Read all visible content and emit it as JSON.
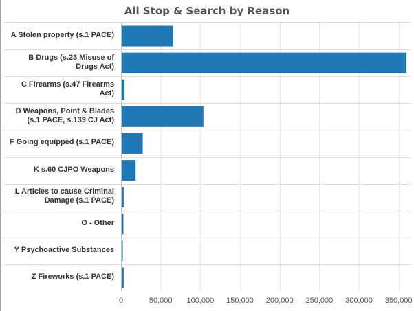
{
  "chart_data": {
    "type": "bar",
    "orientation": "horizontal",
    "title": "All Stop & Search by Reason",
    "categories": [
      "A Stolen property (s.1 PACE)",
      "B Drugs (s.23 Misuse of Drugs Act)",
      "C Firearms (s.47 Firearms Act)",
      "D Weapons, Point & Blades (s.1 PACE, s.139 CJ Act)",
      "F Going equipped (s.1 PACE)",
      "K s.60 CJPO Weapons",
      "L Articles to cause Criminal Damage (s.1 PACE)",
      "O - Other",
      "Y Psychoactive Substances",
      "Z Fireworks (s.1 PACE)"
    ],
    "label_lines": [
      [
        "A Stolen property (s.1 PACE)"
      ],
      [
        "B Drugs (s.23 Misuse of",
        "Drugs Act)"
      ],
      [
        "C Firearms (s.47 Firearms",
        "Act)"
      ],
      [
        "D Weapons, Point & Blades",
        "(s.1 PACE, s.139 CJ Act)"
      ],
      [
        "F Going equipped (s.1 PACE)"
      ],
      [
        "K s.60 CJPO Weapons"
      ],
      [
        "L Articles to cause Criminal",
        "Damage (s.1 PACE)"
      ],
      [
        "O - Other"
      ],
      [
        "Y Psychoactive Substances"
      ],
      [
        "Z Fireworks (s.1 PACE)"
      ]
    ],
    "values": [
      65000,
      359000,
      3500,
      103000,
      26500,
      17500,
      2500,
      2200,
      1000,
      2500
    ],
    "xlim": [
      0,
      365000
    ],
    "xticks": [
      0,
      50000,
      100000,
      150000,
      200000,
      250000,
      300000,
      350000
    ],
    "xtick_labels": [
      "0",
      "50,000",
      "100,000",
      "150,000",
      "200,000",
      "250,000",
      "300,000",
      "350,000"
    ],
    "xlabel": "",
    "ylabel": "",
    "grid": "vertical",
    "bar_color": "#1f77b4",
    "grid_color": "#e6e6e6",
    "separator_color": "#dcdcdc"
  }
}
